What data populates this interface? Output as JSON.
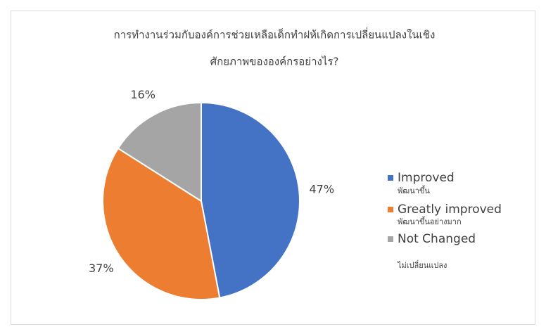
{
  "chart_data": {
    "type": "pie",
    "title": [
      "การทำงานร่วมกับองค์การช่วยเหลือเด็กทำฝห้เกิดการเปลี่ยนแปลงในเชิง",
      "ศักยภาพขององค์กรอย่างไร?"
    ],
    "categories": [
      "Improved",
      "Greatly improved",
      "Not Changed"
    ],
    "category_sublabels": [
      "พัฒนาขึ้น",
      "พัฒนาขึ้นอย่างมาก",
      "ไม่เปลี่ยนแปลง"
    ],
    "values": [
      47,
      37,
      16
    ],
    "value_labels": [
      "47%",
      "37%",
      "16%"
    ],
    "colors": [
      "#4472c4",
      "#ed7d31",
      "#a5a5a5"
    ],
    "legend": "right"
  }
}
